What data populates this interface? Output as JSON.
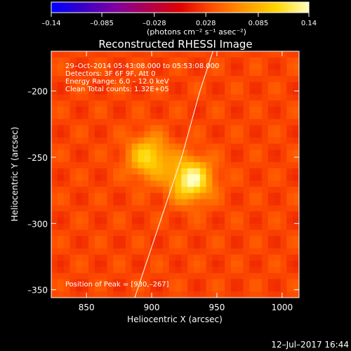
{
  "chart_data": {
    "type": "heatmap",
    "title": "Reconstructed RHESSI Image",
    "xlabel": "Heliocentric X (arcsec)",
    "ylabel": "Heliocentric Y (arcsec)",
    "xlim": [
      823,
      1013
    ],
    "ylim": [
      -356,
      -170
    ],
    "x_ticks": [
      850,
      900,
      950,
      1000
    ],
    "y_ticks": [
      -200,
      -250,
      -300,
      -350
    ],
    "colorbar": {
      "ticks": [
        -0.14,
        -0.085,
        -0.028,
        0.028,
        0.085,
        0.14
      ],
      "tick_labels": [
        "–0.14",
        "–0.085",
        "–0.028",
        "0.028",
        "0.085",
        "0.14"
      ],
      "range": [
        -0.14,
        0.14
      ],
      "unit_label": "(photons cm⁻² s⁻¹ asec⁻²)",
      "colors": [
        "#0000ff",
        "#3a00c8",
        "#8000a0",
        "#b00050",
        "#e00000",
        "#ff5000",
        "#ff9800",
        "#ffd600",
        "#ffffc0"
      ]
    },
    "annotations": [
      "29–Oct–2014 05:43:08.000 to 05:53:08.000",
      "Detectors: 3F 6F 9F, Att 0",
      "Energy Range: 6.0 – 12.0 keV",
      "Clean    Total counts: 1.32E+05"
    ],
    "peak_label": "Position of Peak = [930,–267]",
    "sources": [
      {
        "x": 930,
        "y": -267,
        "intensity": 0.14
      },
      {
        "x": 898,
        "y": -250,
        "intensity": 0.11
      }
    ],
    "background_level": 0.03,
    "limb_line": [
      [
        887,
        -356
      ],
      [
        906,
        -300
      ],
      [
        923,
        -250
      ],
      [
        937,
        -200
      ],
      [
        947,
        -170
      ]
    ],
    "timestamp": "12–Jul–2017 16:44"
  }
}
